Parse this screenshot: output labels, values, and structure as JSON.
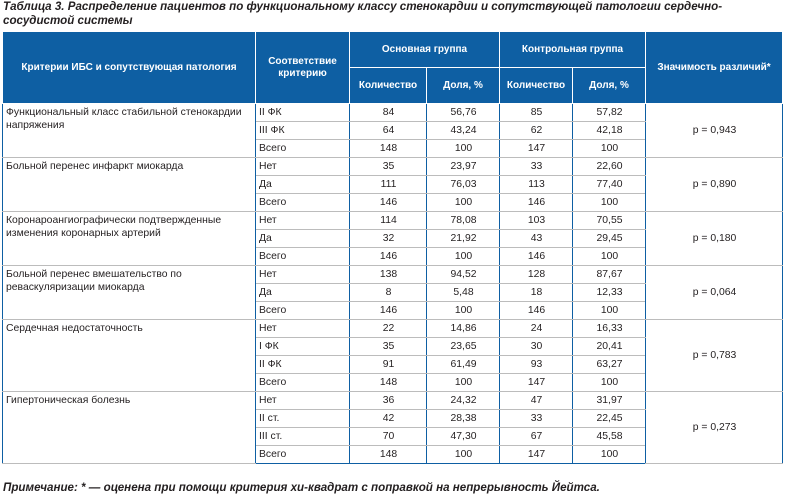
{
  "caption": "Таблица 3. Распределение пациентов по функциональному классу стенокардии и сопутствующей патологии сердечно-сосудистой системы",
  "header": {
    "criteria": "Критерии ИБС и сопутствующая патология",
    "correspondence": "Соответствие критерию",
    "main_group": "Основная группа",
    "control_group": "Контрольная группа",
    "significance": "Значимость различий*",
    "quantity": "Количество",
    "share": "Доля, %"
  },
  "groups": [
    {
      "criterion": "Функциональный класс стабильной стенокардии напряжения",
      "p": "p = 0,943",
      "rows": [
        {
          "corr": "II ФК",
          "n1": "84",
          "p1": "56,76",
          "n2": "85",
          "p2": "57,82"
        },
        {
          "corr": "III ФК",
          "n1": "64",
          "p1": "43,24",
          "n2": "62",
          "p2": "42,18"
        },
        {
          "corr": "Всего",
          "n1": "148",
          "p1": "100",
          "n2": "147",
          "p2": "100"
        }
      ]
    },
    {
      "criterion": "Больной перенес инфаркт миокарда",
      "p": "p = 0,890",
      "rows": [
        {
          "corr": "Нет",
          "n1": "35",
          "p1": "23,97",
          "n2": "33",
          "p2": "22,60"
        },
        {
          "corr": "Да",
          "n1": "111",
          "p1": "76,03",
          "n2": "113",
          "p2": "77,40"
        },
        {
          "corr": "Всего",
          "n1": "146",
          "p1": "100",
          "n2": "146",
          "p2": "100"
        }
      ]
    },
    {
      "criterion": "Коронароангиографически подтвержденные изменения коронарных артерий",
      "p": "p = 0,180",
      "rows": [
        {
          "corr": "Нет",
          "n1": "114",
          "p1": "78,08",
          "n2": "103",
          "p2": "70,55"
        },
        {
          "corr": "Да",
          "n1": "32",
          "p1": "21,92",
          "n2": "43",
          "p2": "29,45"
        },
        {
          "corr": "Всего",
          "n1": "146",
          "p1": "100",
          "n2": "146",
          "p2": "100"
        }
      ]
    },
    {
      "criterion": "Больной перенес вмешательство по реваскуляризации миокарда",
      "p": "p = 0,064",
      "rows": [
        {
          "corr": "Нет",
          "n1": "138",
          "p1": "94,52",
          "n2": "128",
          "p2": "87,67"
        },
        {
          "corr": "Да",
          "n1": "8",
          "p1": "5,48",
          "n2": "18",
          "p2": "12,33"
        },
        {
          "corr": "Всего",
          "n1": "146",
          "p1": "100",
          "n2": "146",
          "p2": "100"
        }
      ]
    },
    {
      "criterion": "Сердечная недостаточность",
      "p": "p = 0,783",
      "rows": [
        {
          "corr": "Нет",
          "n1": "22",
          "p1": "14,86",
          "n2": "24",
          "p2": "16,33"
        },
        {
          "corr": "I ФК",
          "n1": "35",
          "p1": "23,65",
          "n2": "30",
          "p2": "20,41"
        },
        {
          "corr": "II ФК",
          "n1": "91",
          "p1": "61,49",
          "n2": "93",
          "p2": "63,27"
        },
        {
          "corr": "Всего",
          "n1": "148",
          "p1": "100",
          "n2": "147",
          "p2": "100"
        }
      ]
    },
    {
      "criterion": "Гипертоническая болезнь",
      "p": "p = 0,273",
      "rows": [
        {
          "corr": "Нет",
          "n1": "36",
          "p1": "24,32",
          "n2": "47",
          "p2": "31,97"
        },
        {
          "corr": "II ст.",
          "n1": "42",
          "p1": "28,38",
          "n2": "33",
          "p2": "22,45"
        },
        {
          "corr": "III ст.",
          "n1": "70",
          "p1": "47,30",
          "n2": "67",
          "p2": "45,58"
        },
        {
          "corr": "Всего",
          "n1": "148",
          "p1": "100",
          "n2": "147",
          "p2": "100"
        }
      ]
    }
  ],
  "note": "Примечание: * — оценена при помощи критерия хи-квадрат с поправкой на непрерывность Йейтса."
}
